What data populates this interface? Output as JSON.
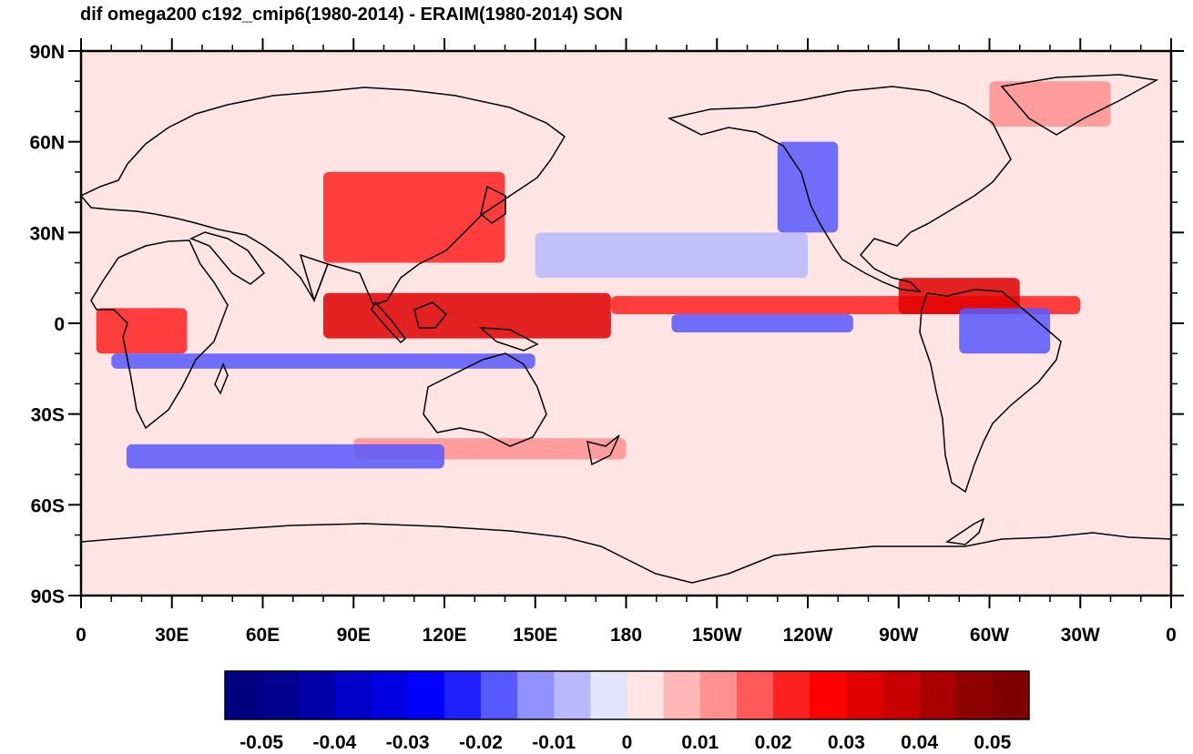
{
  "title": "dif omega200 c192_cmip6(1980-2014) - ERAIM(1980-2014) SON",
  "map": {
    "projection": "cylindrical-equidistant",
    "center_longitude": 180,
    "lon_range": [
      0,
      360
    ],
    "lat_range": [
      -90,
      90
    ],
    "background_level": "0",
    "lat_ticks": [
      {
        "lat": 90,
        "label": "90N"
      },
      {
        "lat": 60,
        "label": "60N"
      },
      {
        "lat": 30,
        "label": "30N"
      },
      {
        "lat": 0,
        "label": "0"
      },
      {
        "lat": -30,
        "label": "30S"
      },
      {
        "lat": -60,
        "label": "60S"
      },
      {
        "lat": -90,
        "label": "90S"
      }
    ],
    "lon_ticks": [
      {
        "lon": 0,
        "label": "0"
      },
      {
        "lon": 30,
        "label": "30E"
      },
      {
        "lon": 60,
        "label": "60E"
      },
      {
        "lon": 90,
        "label": "90E"
      },
      {
        "lon": 120,
        "label": "120E"
      },
      {
        "lon": 150,
        "label": "150E"
      },
      {
        "lon": 180,
        "label": "180"
      },
      {
        "lon": 210,
        "label": "150W"
      },
      {
        "lon": 240,
        "label": "120W"
      },
      {
        "lon": 270,
        "label": "90W"
      },
      {
        "lon": 300,
        "label": "60W"
      },
      {
        "lon": 330,
        "label": "30W"
      },
      {
        "lon": 360,
        "label": "0"
      }
    ]
  },
  "colorbar": {
    "colors": [
      "#000080",
      "#00008f",
      "#0000a8",
      "#0000c8",
      "#0000e0",
      "#0000ff",
      "#2020ff",
      "#5858ff",
      "#9090ff",
      "#b8b8ff",
      "#e4e4ff",
      "#ffe4e4",
      "#ffb8b8",
      "#ff9090",
      "#ff5858",
      "#ff2020",
      "#ff0000",
      "#e00000",
      "#c80000",
      "#a80000",
      "#8f0000",
      "#800000"
    ],
    "tick_labels": [
      {
        "after_box": 1,
        "label": "-0.05"
      },
      {
        "after_box": 3,
        "label": "-0.04"
      },
      {
        "after_box": 5,
        "label": "-0.03"
      },
      {
        "after_box": 7,
        "label": "-0.02"
      },
      {
        "after_box": 9,
        "label": "-0.01"
      },
      {
        "after_box": 11,
        "label": "0"
      },
      {
        "after_box": 13,
        "label": "0.01"
      },
      {
        "after_box": 15,
        "label": "0.02"
      },
      {
        "after_box": 17,
        "label": "0.03"
      },
      {
        "after_box": 19,
        "label": "0.04"
      },
      {
        "after_box": 21,
        "label": "0.05"
      }
    ]
  },
  "anomaly_regions": [
    {
      "sign": "positive",
      "strength": 0.03,
      "lon": [
        80,
        175
      ],
      "lat": [
        -5,
        10
      ],
      "note": "Indian Ocean / Maritime Continent"
    },
    {
      "sign": "positive",
      "strength": 0.025,
      "lon": [
        5,
        35
      ],
      "lat": [
        -10,
        5
      ],
      "note": "central Africa"
    },
    {
      "sign": "positive",
      "strength": 0.02,
      "lon": [
        175,
        330
      ],
      "lat": [
        3,
        9
      ],
      "note": "ITCZ"
    },
    {
      "sign": "positive",
      "strength": 0.03,
      "lon": [
        270,
        310
      ],
      "lat": [
        3,
        15
      ],
      "note": "Central America / Caribbean"
    },
    {
      "sign": "positive",
      "strength": 0.025,
      "lon": [
        80,
        140
      ],
      "lat": [
        20,
        50
      ],
      "note": "Tibet / East Asia"
    },
    {
      "sign": "positive",
      "strength": 0.01,
      "lon": [
        90,
        180
      ],
      "lat": [
        -45,
        -38
      ],
      "note": "southern midlatitudes"
    },
    {
      "sign": "positive",
      "strength": 0.01,
      "lon": [
        300,
        340
      ],
      "lat": [
        65,
        80
      ],
      "note": "Greenland"
    },
    {
      "sign": "negative",
      "strength": -0.02,
      "lon": [
        195,
        255
      ],
      "lat": [
        -3,
        3
      ],
      "note": "equatorial east Pacific"
    },
    {
      "sign": "negative",
      "strength": -0.015,
      "lon": [
        10,
        150
      ],
      "lat": [
        -15,
        -10
      ],
      "note": "south Indian Ocean"
    },
    {
      "sign": "negative",
      "strength": -0.015,
      "lon": [
        15,
        120
      ],
      "lat": [
        -48,
        -40
      ],
      "note": "southern Indian Ocean"
    },
    {
      "sign": "negative",
      "strength": -0.02,
      "lon": [
        290,
        320
      ],
      "lat": [
        -10,
        5
      ],
      "note": "Amazon"
    },
    {
      "sign": "negative",
      "strength": -0.02,
      "lon": [
        230,
        250
      ],
      "lat": [
        30,
        60
      ],
      "note": "Rockies"
    },
    {
      "sign": "negative",
      "strength": -0.01,
      "lon": [
        150,
        240
      ],
      "lat": [
        15,
        30
      ],
      "note": "north subtropical Pacific"
    }
  ]
}
